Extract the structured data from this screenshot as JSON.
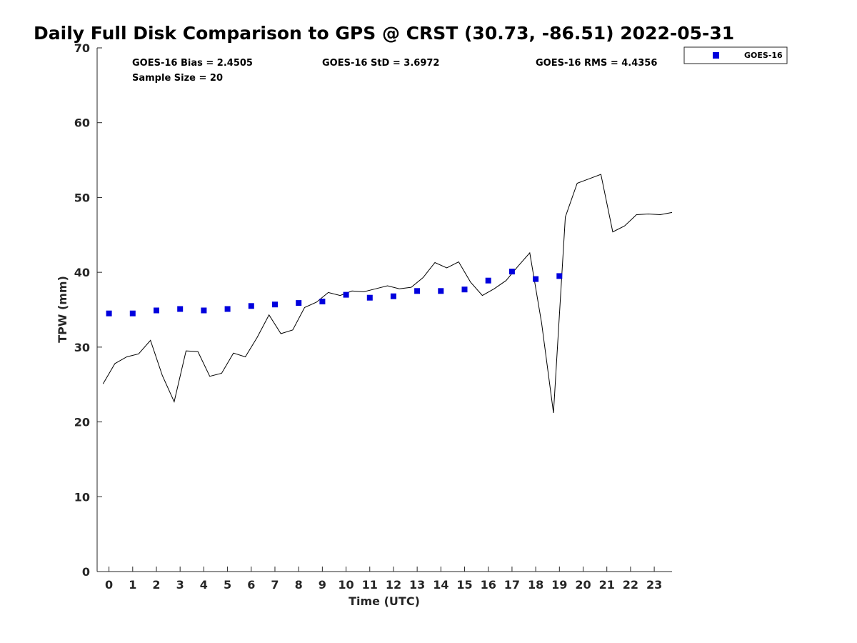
{
  "chart_data": {
    "type": "scatter",
    "title": "Daily Full Disk Comparison to GPS @ CRST (30.73, -86.51) 2022-05-31",
    "xlabel": "Time (UTC)",
    "ylabel": "TPW (mm)",
    "xlim": [
      -0.5,
      23.75
    ],
    "ylim": [
      0,
      70
    ],
    "x_ticks": [
      0,
      1,
      2,
      3,
      4,
      5,
      6,
      7,
      8,
      9,
      10,
      11,
      12,
      13,
      14,
      15,
      16,
      17,
      18,
      19,
      20,
      21,
      22,
      23
    ],
    "y_ticks": [
      0,
      10,
      20,
      30,
      40,
      50,
      60,
      70
    ],
    "grid": false,
    "stats": {
      "bias": "GOES-16 Bias = 2.4505",
      "std": "GOES-16 StD = 3.6972",
      "rms": "GOES-16 RMS = 4.4356",
      "sample_size": "Sample Size = 20"
    },
    "legend": {
      "position": "top-right-outside",
      "entries": [
        "GOES-16"
      ]
    },
    "series": [
      {
        "name": "GOES-16",
        "kind": "scatter",
        "color": "#0000dd",
        "marker": "square",
        "x": [
          0,
          1,
          2,
          3,
          4,
          5,
          6,
          7,
          8,
          9,
          10,
          11,
          12,
          13,
          14,
          15,
          16,
          17,
          18,
          19
        ],
        "y": [
          34.5,
          34.5,
          34.9,
          35.1,
          34.9,
          35.1,
          35.5,
          35.7,
          35.9,
          36.1,
          37.0,
          36.6,
          36.8,
          37.5,
          37.5,
          37.7,
          38.9,
          40.1,
          39.1,
          39.5
        ]
      },
      {
        "name": "GPS",
        "kind": "line",
        "color": "#000000",
        "x": [
          -0.25,
          0.25,
          0.75,
          1.25,
          1.75,
          2.25,
          2.75,
          3.25,
          3.75,
          4.25,
          4.75,
          5.25,
          5.75,
          6.25,
          6.75,
          7.25,
          7.75,
          8.25,
          8.75,
          9.25,
          9.75,
          10.25,
          10.75,
          11.25,
          11.75,
          12.25,
          12.75,
          13.25,
          13.75,
          14.25,
          14.75,
          15.25,
          15.75,
          16.25,
          16.75,
          17.25,
          17.75,
          18.25,
          18.75,
          19.25,
          19.75,
          20.25,
          20.75,
          21.25,
          21.75,
          22.25,
          22.75,
          23.25,
          23.75
        ],
        "y": [
          25.1,
          27.8,
          28.7,
          29.1,
          30.9,
          26.2,
          22.7,
          29.5,
          29.4,
          26.1,
          26.5,
          29.2,
          28.7,
          31.3,
          34.3,
          31.8,
          32.3,
          35.3,
          36.0,
          37.3,
          36.9,
          37.5,
          37.4,
          37.8,
          38.2,
          37.8,
          38.0,
          39.3,
          41.3,
          40.6,
          41.4,
          38.7,
          36.9,
          37.8,
          38.9,
          40.8,
          42.6,
          33.2,
          21.2,
          47.4,
          51.9,
          52.5,
          53.1,
          45.4,
          46.2,
          47.7,
          47.8,
          47.7,
          48.0
        ]
      }
    ]
  }
}
